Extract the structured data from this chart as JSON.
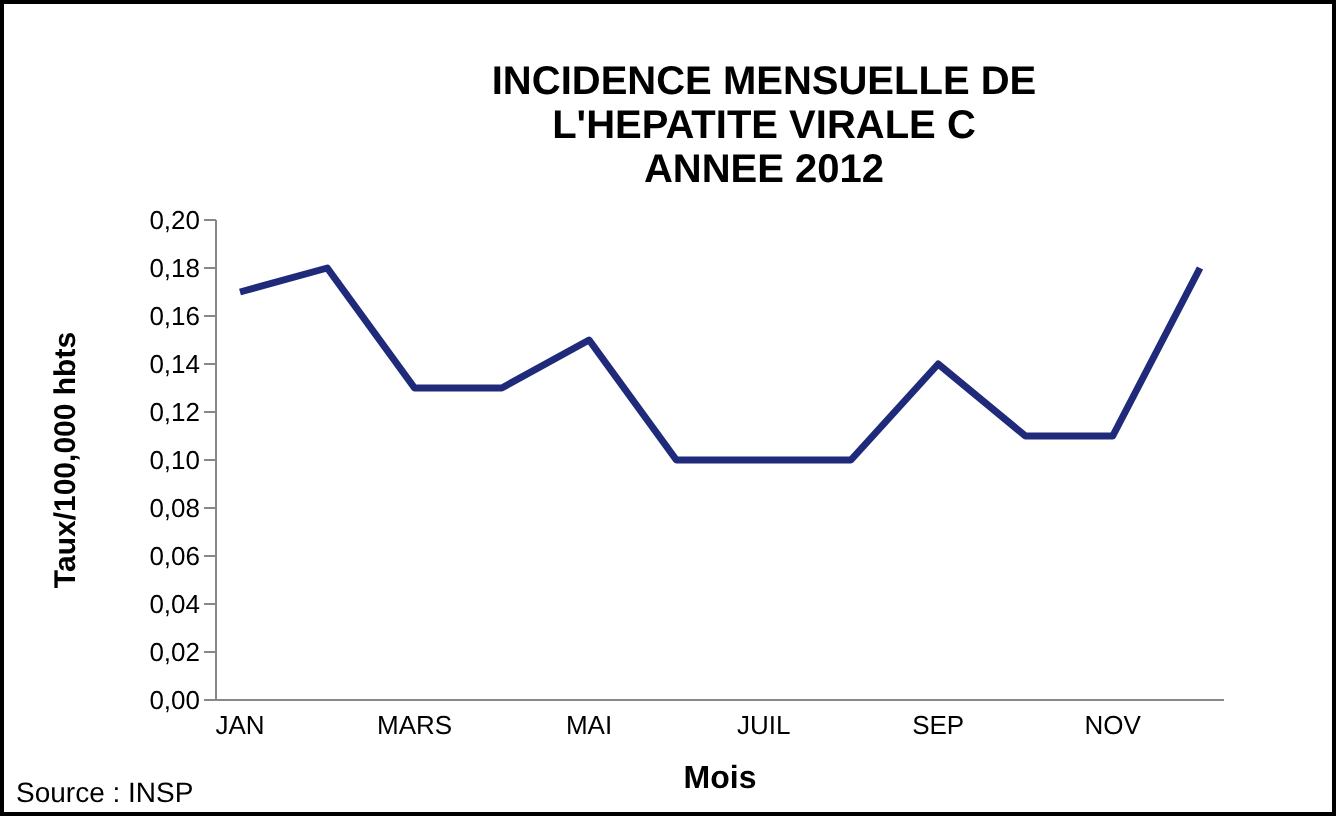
{
  "chart_data": {
    "type": "line",
    "title": "INCIDENCE MENSUELLE DE\nL'HEPATITE VIRALE C\nANNEE 2012",
    "xlabel": "Mois",
    "ylabel": "Taux/100,000 hbts",
    "categories": [
      "JAN",
      null,
      "MARS",
      null,
      "MAI",
      null,
      "JUIL",
      null,
      "SEP",
      null,
      "NOV",
      null
    ],
    "series": [
      {
        "color": "#1f2a7a",
        "values": [
          0.17,
          0.18,
          0.13,
          0.13,
          0.15,
          0.1,
          0.1,
          0.1,
          0.14,
          0.11,
          0.11,
          0.18
        ]
      }
    ],
    "ylim": [
      0,
      0.2
    ],
    "yticks": [
      {
        "value": 0,
        "label": "0,00"
      },
      {
        "value": 0.02,
        "label": "0,02"
      },
      {
        "value": 0.04,
        "label": "0,04"
      },
      {
        "value": 0.06,
        "label": "0,06"
      },
      {
        "value": 0.08,
        "label": "0,08"
      },
      {
        "value": 0.1,
        "label": "0,10"
      },
      {
        "value": 0.12,
        "label": "0,12"
      },
      {
        "value": 0.14,
        "label": "0,14"
      },
      {
        "value": 0.16,
        "label": "0,16"
      },
      {
        "value": 0.18,
        "label": "0,18"
      },
      {
        "value": 0.2,
        "label": "0,20"
      }
    ],
    "grid": false,
    "legend": false,
    "marker": "none",
    "line_style": "solid",
    "annotations": [
      "Source : INSP"
    ]
  }
}
